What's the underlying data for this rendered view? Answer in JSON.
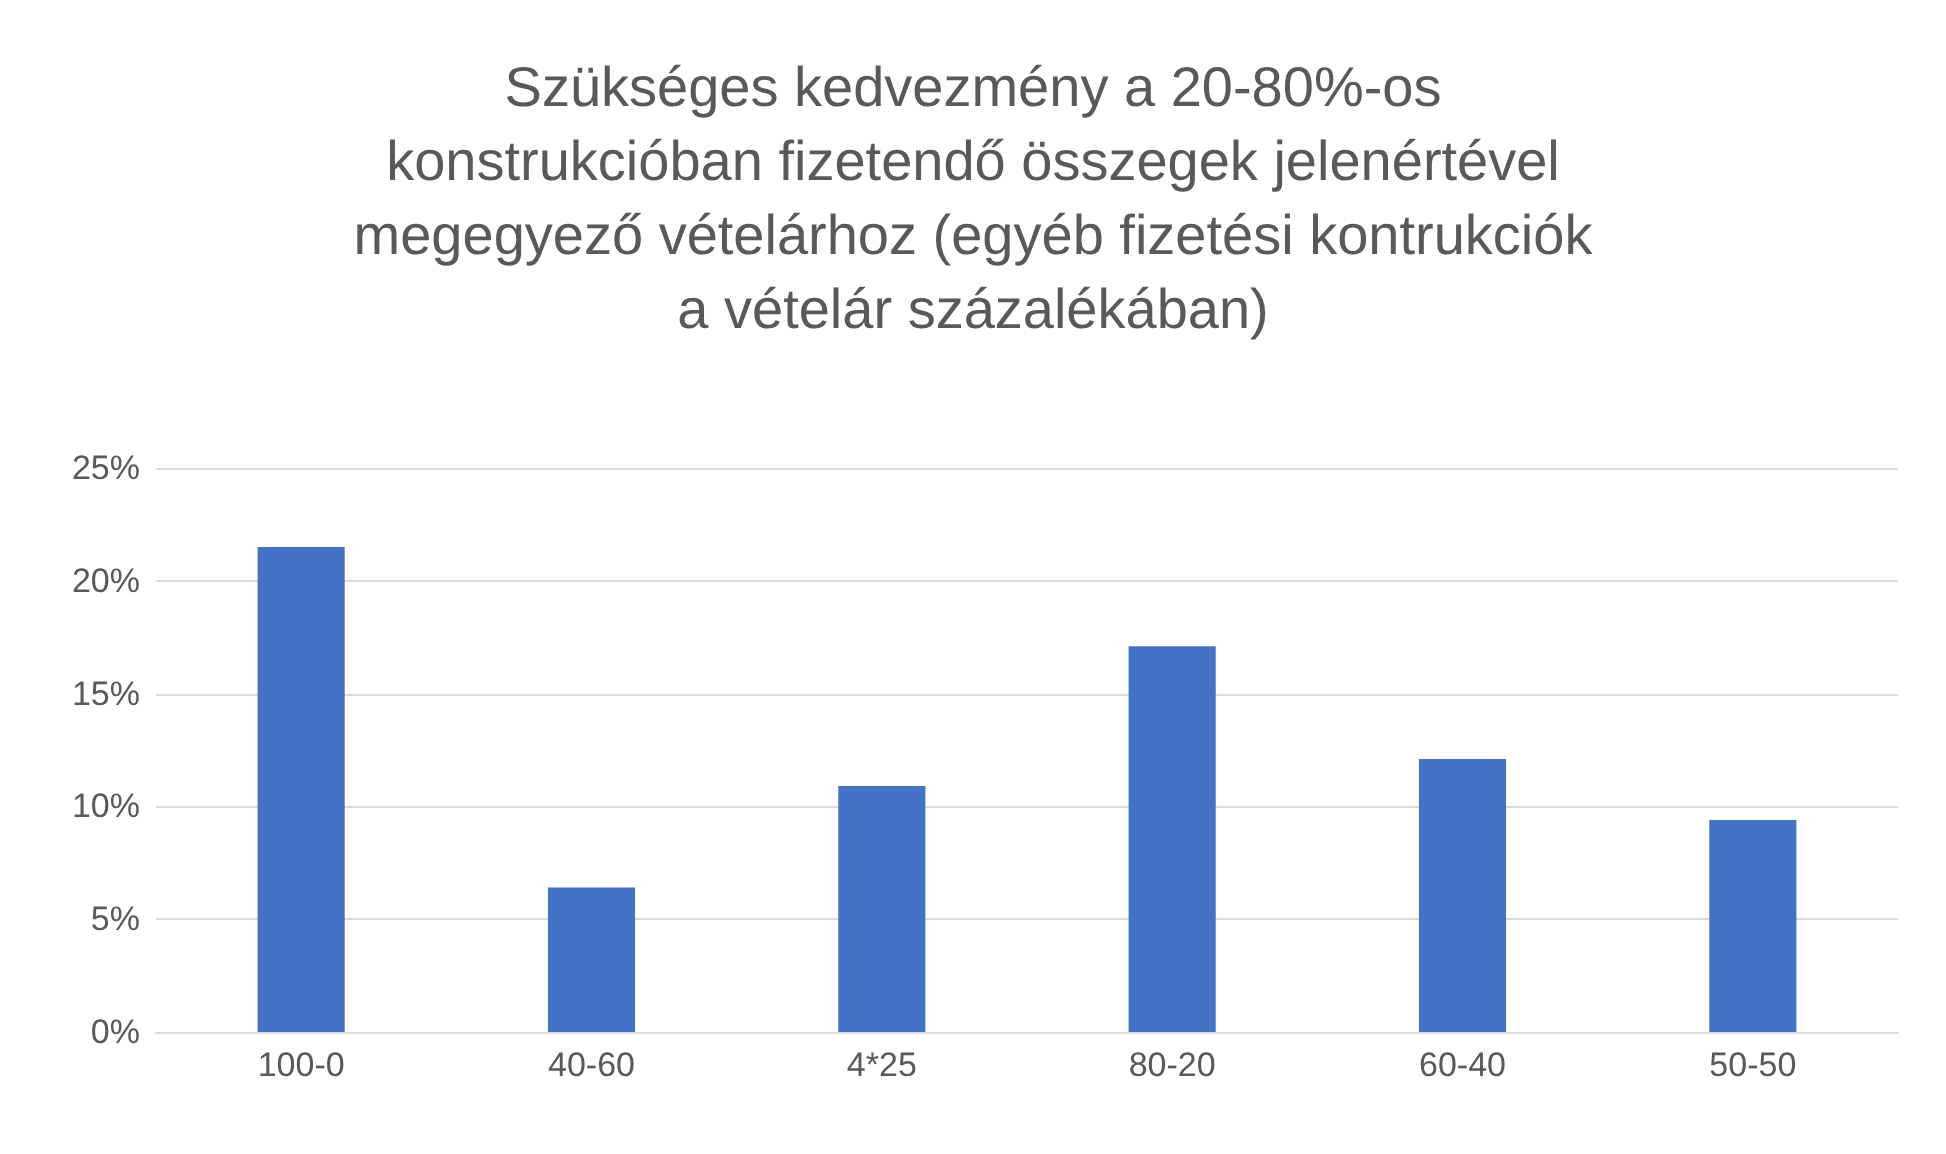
{
  "chart_data": {
    "type": "bar",
    "title": "Szükséges kedvezmény a 20-80%-os\nkonstrukcióban fizetendő összegek jelenértével\nmegegyező vételárhoz (egyéb fizetési kontrukciók\na vételár százalékában)",
    "categories": [
      "100-0",
      "40-60",
      "4*25",
      "80-20",
      "60-40",
      "50-50"
    ],
    "values": [
      21.5,
      6.4,
      10.9,
      17.1,
      12.1,
      9.4
    ],
    "color": "#4472c4",
    "ylim": [
      0,
      25
    ],
    "yticks": [
      {
        "value": 0,
        "label": "0%"
      },
      {
        "value": 5,
        "label": "5%"
      },
      {
        "value": 10,
        "label": "10%"
      },
      {
        "value": 15,
        "label": "15%"
      },
      {
        "value": 20,
        "label": "20%"
      },
      {
        "value": 25,
        "label": "25%"
      }
    ],
    "grid": "y"
  }
}
